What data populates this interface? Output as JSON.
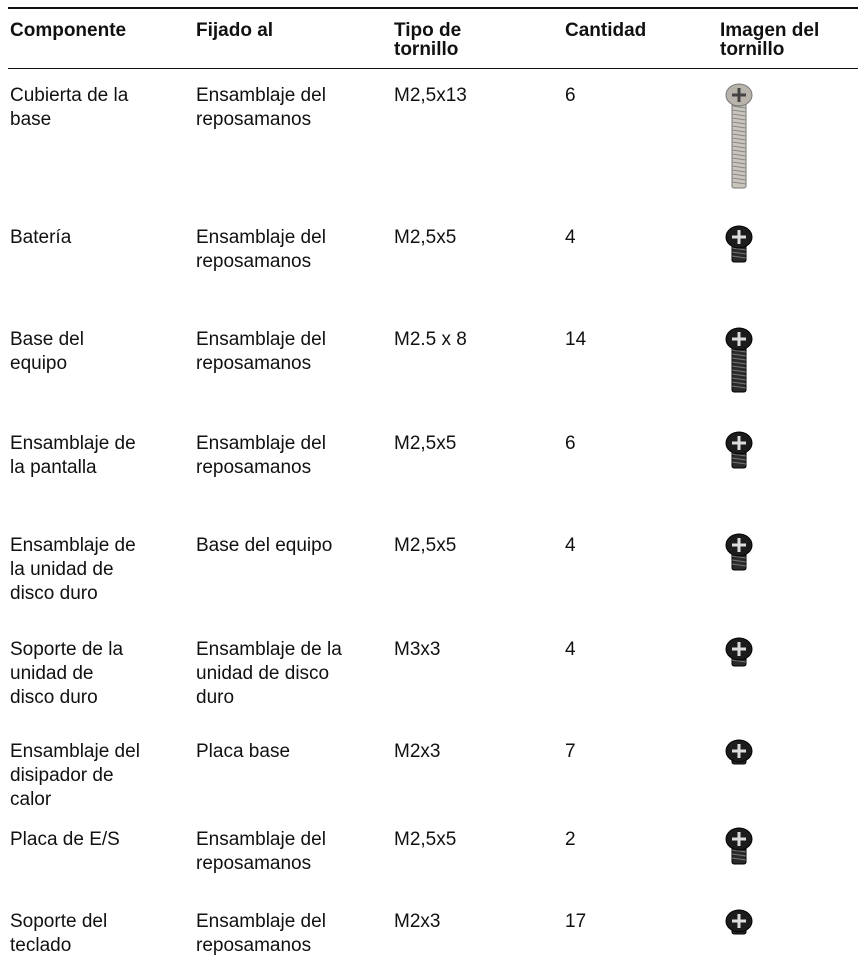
{
  "table": {
    "header": [
      [
        "Componente"
      ],
      [
        "Fijado al"
      ],
      [
        "Tipo de",
        "tornillo"
      ],
      [
        "Cantidad"
      ],
      [
        "Imagen del",
        "tornillo"
      ]
    ],
    "rows": [
      [
        [
          "Cubierta de la",
          "base"
        ],
        [
          "Ensamblaje del",
          "reposamanos"
        ],
        [
          "M2,5x13"
        ],
        6
      ],
      [
        [
          "Batería"
        ],
        [
          "Ensamblaje del",
          "reposamanos"
        ],
        [
          "M2,5x5"
        ],
        4
      ],
      [
        [
          "Base del",
          "equipo"
        ],
        [
          "Ensamblaje del",
          "reposamanos"
        ],
        [
          "M2.5 x 8"
        ],
        14
      ],
      [
        [
          "Ensamblaje de",
          "la pantalla"
        ],
        [
          "Ensamblaje del",
          "reposamanos"
        ],
        [
          "M2,5x5"
        ],
        6
      ],
      [
        [
          "Ensamblaje de",
          "la unidad de",
          "disco duro"
        ],
        [
          "Base del equipo"
        ],
        [
          "M2,5x5"
        ],
        4
      ],
      [
        [
          "Soporte de la",
          "unidad de",
          "disco duro"
        ],
        [
          "Ensamblaje de la",
          "unidad de disco",
          "duro"
        ],
        [
          "M3x3"
        ],
        4
      ],
      [
        [
          "Ensamblaje del",
          "disipador de",
          "calor"
        ],
        [
          "Placa base"
        ],
        [
          "M2x3"
        ],
        7
      ],
      [
        [
          "Placa de E/S"
        ],
        [
          "Ensamblaje del",
          "reposamanos"
        ],
        [
          "M2,5x5"
        ],
        2
      ],
      [
        [
          "Soporte del",
          "teclado"
        ],
        [
          "Ensamblaje del",
          "reposamanos"
        ],
        [
          "M2x3"
        ],
        17
      ]
    ]
  }
}
